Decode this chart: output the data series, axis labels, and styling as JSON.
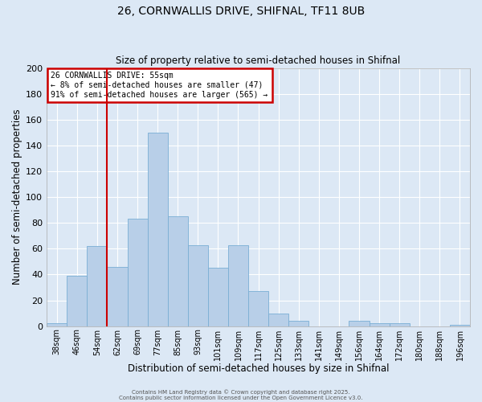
{
  "title_line1": "26, CORNWALLIS DRIVE, SHIFNAL, TF11 8UB",
  "title_line2": "Size of property relative to semi-detached houses in Shifnal",
  "xlabel": "Distribution of semi-detached houses by size in Shifnal",
  "ylabel": "Number of semi-detached properties",
  "bin_labels": [
    "38sqm",
    "46sqm",
    "54sqm",
    "62sqm",
    "69sqm",
    "77sqm",
    "85sqm",
    "93sqm",
    "101sqm",
    "109sqm",
    "117sqm",
    "125sqm",
    "133sqm",
    "141sqm",
    "149sqm",
    "156sqm",
    "164sqm",
    "172sqm",
    "180sqm",
    "188sqm",
    "196sqm"
  ],
  "bar_values": [
    2,
    39,
    62,
    46,
    83,
    150,
    85,
    63,
    45,
    63,
    27,
    10,
    4,
    0,
    0,
    4,
    2,
    2,
    0,
    0,
    1
  ],
  "bar_color": "#b8cfe8",
  "bar_edge_color": "#7aaed4",
  "background_color": "#dce8f5",
  "grid_color": "#ffffff",
  "vline_color": "#cc0000",
  "annotation_title": "26 CORNWALLIS DRIVE: 55sqm",
  "annotation_line1": "← 8% of semi-detached houses are smaller (47)",
  "annotation_line2": "91% of semi-detached houses are larger (565) →",
  "annotation_box_color": "#cc0000",
  "ylim": [
    0,
    200
  ],
  "yticks": [
    0,
    20,
    40,
    60,
    80,
    100,
    120,
    140,
    160,
    180,
    200
  ],
  "footnote1": "Contains HM Land Registry data © Crown copyright and database right 2025.",
  "footnote2": "Contains public sector information licensed under the Open Government Licence v3.0."
}
